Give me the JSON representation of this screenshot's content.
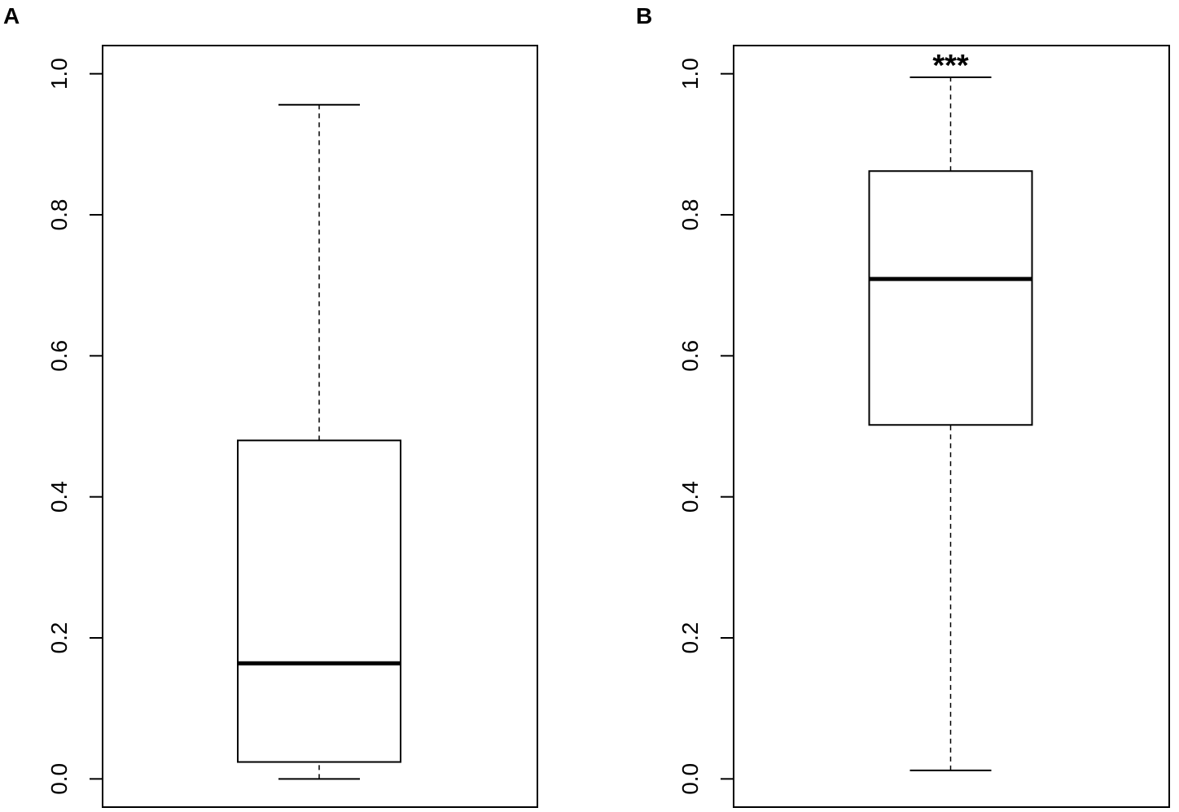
{
  "chart_data": [
    {
      "type": "box",
      "panel_label": "A",
      "box": {
        "min": 0.0,
        "q1": 0.024,
        "median": 0.164,
        "q3": 0.48,
        "max": 0.956
      },
      "ylim": [
        -0.04,
        1.04
      ],
      "yticks": [
        {
          "value": 0,
          "label": "0.0"
        },
        0.2,
        0.4,
        0.6,
        0.8,
        {
          "value": 1,
          "label": "1.0"
        }
      ],
      "color": "#000000"
    },
    {
      "type": "box",
      "panel_label": "B",
      "annotation": "***",
      "box": {
        "min": 0.012,
        "q1": 0.502,
        "median": 0.709,
        "q3": 0.862,
        "max": 0.995
      },
      "ylim": [
        -0.04,
        1.04
      ],
      "yticks": [
        {
          "value": 0,
          "label": "0.0"
        },
        0.2,
        0.4,
        0.6,
        0.8,
        {
          "value": 1,
          "label": "1.0"
        }
      ],
      "color": "#000000"
    }
  ]
}
